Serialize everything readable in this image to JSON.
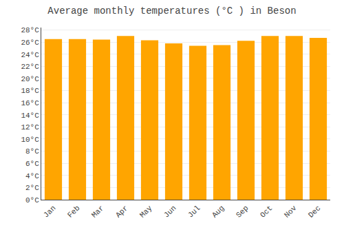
{
  "chart_data": {
    "type": "bar",
    "title": "Average monthly temperatures (°C ) in Beson",
    "categories": [
      "Jan",
      "Feb",
      "Mar",
      "Apr",
      "May",
      "Jun",
      "Jul",
      "Aug",
      "Sep",
      "Oct",
      "Nov",
      "Dec"
    ],
    "values": [
      26.5,
      26.5,
      26.4,
      27.0,
      26.3,
      25.8,
      25.4,
      25.5,
      26.2,
      27.0,
      27.0,
      26.7
    ],
    "color": "#FFA500",
    "ylim": [
      0,
      28.4
    ],
    "yticks": [
      {
        "value": 0,
        "label": "0°C"
      },
      {
        "value": 2,
        "label": "2°C"
      },
      {
        "value": 4,
        "label": "4°C"
      },
      {
        "value": 6,
        "label": "6°C"
      },
      {
        "value": 8,
        "label": "8°C"
      },
      {
        "value": 10,
        "label": "10°C"
      },
      {
        "value": 12,
        "label": "12°C"
      },
      {
        "value": 14,
        "label": "14°C"
      },
      {
        "value": 16,
        "label": "16°C"
      },
      {
        "value": 18,
        "label": "18°C"
      },
      {
        "value": 20,
        "label": "20°C"
      },
      {
        "value": 22,
        "label": "22°C"
      },
      {
        "value": 24,
        "label": "24°C"
      },
      {
        "value": 26,
        "label": "26°C"
      },
      {
        "value": 28,
        "label": "28°C"
      }
    ],
    "grid": true
  }
}
